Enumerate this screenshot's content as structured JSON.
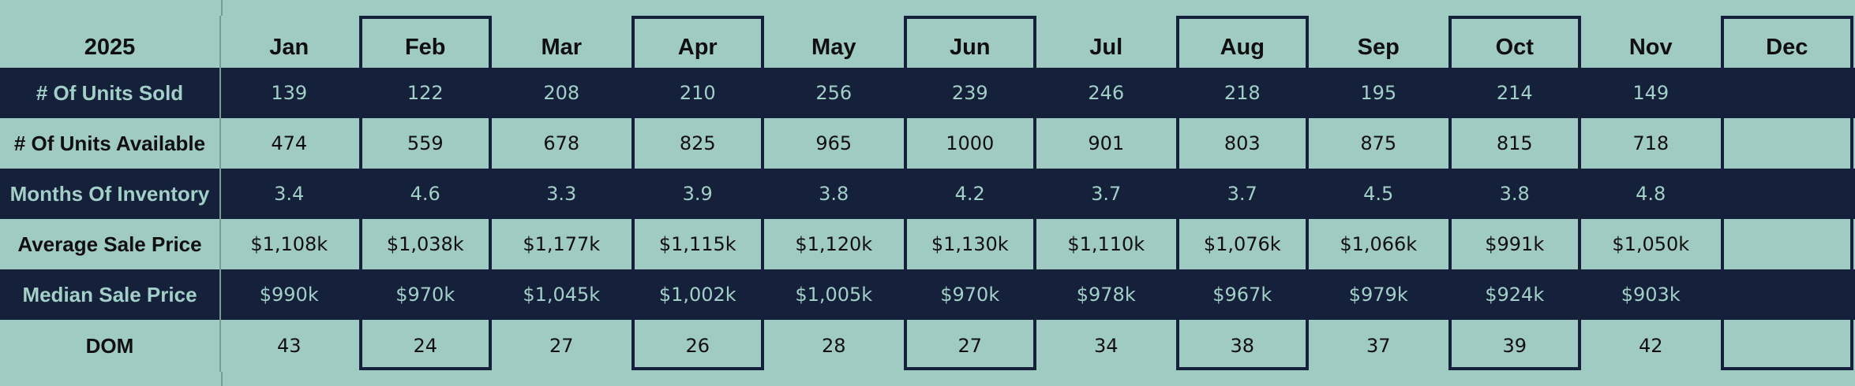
{
  "year": "2025",
  "months": [
    "Jan",
    "Feb",
    "Mar",
    "Apr",
    "May",
    "Jun",
    "Jul",
    "Aug",
    "Sep",
    "Oct",
    "Nov",
    "Dec"
  ],
  "rows": [
    {
      "label": "# Of Units Sold",
      "values": [
        "139",
        "122",
        "208",
        "210",
        "256",
        "239",
        "246",
        "218",
        "195",
        "214",
        "149",
        ""
      ]
    },
    {
      "label": "# Of Units Available",
      "values": [
        "474",
        "559",
        "678",
        "825",
        "965",
        "1000",
        "901",
        "803",
        "875",
        "815",
        "718",
        ""
      ]
    },
    {
      "label": "Months Of Inventory",
      "values": [
        "3.4",
        "4.6",
        "3.3",
        "3.9",
        "3.8",
        "4.2",
        "3.7",
        "3.7",
        "4.5",
        "3.8",
        "4.8",
        ""
      ]
    },
    {
      "label": "Average Sale Price",
      "values": [
        "$1,108k",
        "$1,038k",
        "$1,177k",
        "$1,115k",
        "$1,120k",
        "$1,130k",
        "$1,110k",
        "$1,076k",
        "$1,066k",
        "$991k",
        "$1,050k",
        ""
      ]
    },
    {
      "label": "Median Sale Price",
      "values": [
        "$990k",
        "$970k",
        "$1,045k",
        "$1,002k",
        "$1,005k",
        "$970k",
        "$978k",
        "$967k",
        "$979k",
        "$924k",
        "$903k",
        ""
      ]
    },
    {
      "label": "DOM",
      "values": [
        "43",
        "24",
        "27",
        "26",
        "28",
        "27",
        "34",
        "38",
        "37",
        "39",
        "42",
        ""
      ]
    }
  ],
  "colors": {
    "dark_row": "#15213a",
    "light_row": "#a0cbc3",
    "dark_text": "#a2d0c8"
  }
}
